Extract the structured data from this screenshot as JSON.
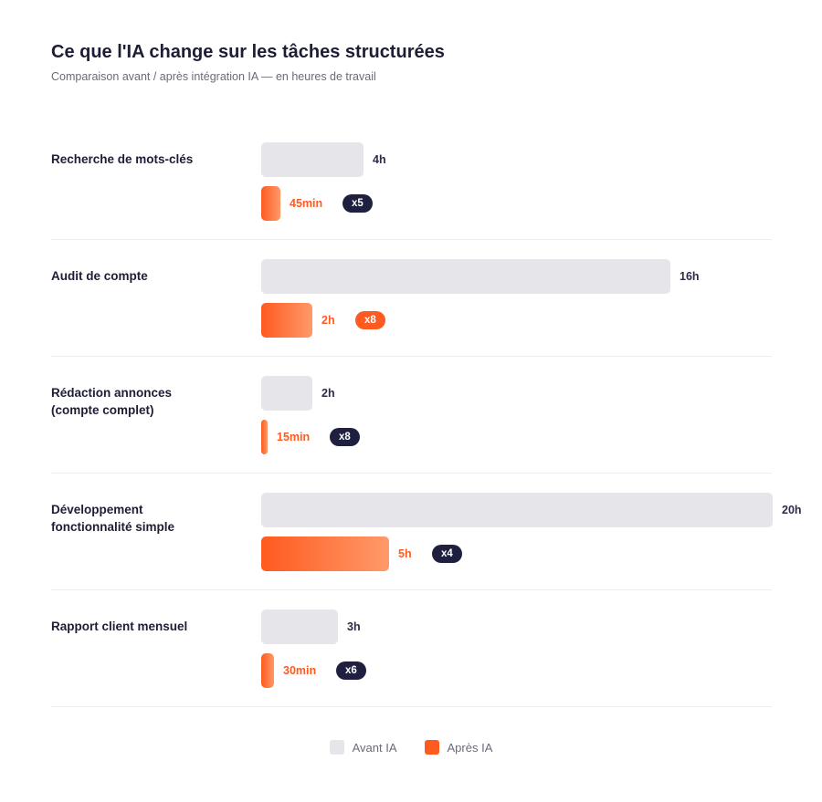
{
  "title": "Ce que l'IA change sur les tâches structurées",
  "subtitle": "Comparaison avant / après intégration IA — en heures de travail",
  "legend": {
    "before": "Avant IA",
    "after": "Après IA"
  },
  "colors": {
    "before": "#e5e5ea",
    "after": "#ff5a1f",
    "badge": "#1f2040"
  },
  "chart_data": {
    "type": "bar",
    "orientation": "horizontal",
    "title": "Ce que l'IA change sur les tâches structurées",
    "subtitle": "Comparaison avant / après intégration IA — en heures de travail",
    "categories": [
      "Recherche de mots-clés",
      "Audit de compte",
      "Rédaction annonces\n(compte complet)",
      "Développement\nfonctionnalité simple",
      "Rapport client mensuel"
    ],
    "series": [
      {
        "name": "Avant IA",
        "values": [
          4,
          16,
          2,
          20,
          3
        ],
        "labels": [
          "4h",
          "16h",
          "2h",
          "20h",
          "3h"
        ]
      },
      {
        "name": "Après IA",
        "values": [
          0.75,
          2,
          0.25,
          5,
          0.5
        ],
        "labels": [
          "45min",
          "2h",
          "15min",
          "5h",
          "30min"
        ]
      }
    ],
    "multipliers": [
      "x5",
      "x8",
      "x8",
      "x4",
      "x6"
    ],
    "highlighted_multiplier_index": 1,
    "unit": "heures",
    "xlim": [
      0,
      20
    ],
    "legend_position": "bottom-center"
  }
}
